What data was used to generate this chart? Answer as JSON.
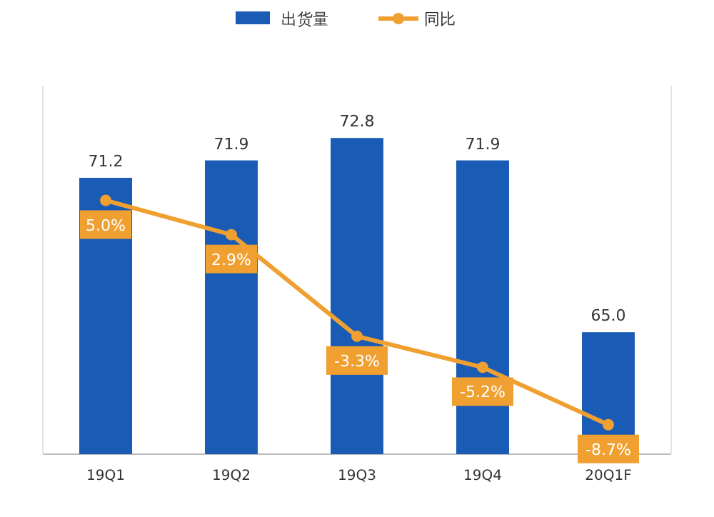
{
  "chart_data": {
    "type": "bar",
    "categories": [
      "19Q1",
      "19Q2",
      "19Q3",
      "19Q4",
      "20Q1F"
    ],
    "series": [
      {
        "name": "出货量",
        "color": "#1a5bb5",
        "values": [
          71.2,
          71.9,
          72.8,
          71.9,
          65.0
        ],
        "value_labels": [
          "71.2",
          "71.9",
          "72.8",
          "71.9",
          "65.0"
        ]
      },
      {
        "name": "同比",
        "type": "line",
        "axis": "y2",
        "color": "#f0a030",
        "values": [
          5.0,
          2.9,
          -3.3,
          -5.2,
          -8.7
        ],
        "value_labels": [
          "5.0%",
          "2.9%",
          "-3.3%",
          "-5.2%",
          "-8.7%"
        ]
      }
    ],
    "ylim": [
      60.1,
      74.9
    ],
    "y2lim": [
      -10.5,
      12.0
    ],
    "marker": "circle",
    "line_style": "solid",
    "legend": "top",
    "tick_labels": "x"
  }
}
